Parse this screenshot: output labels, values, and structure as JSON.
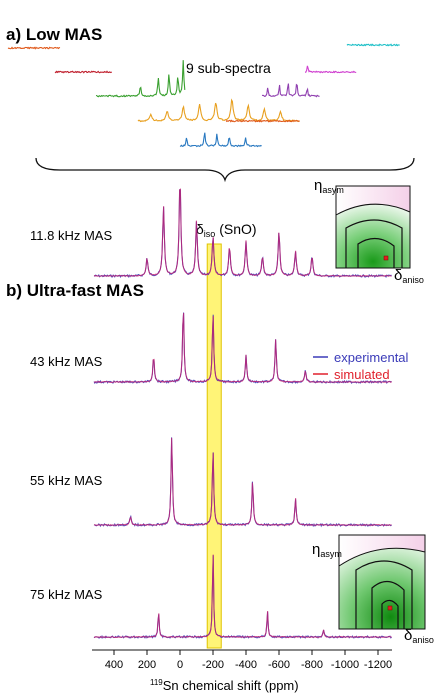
{
  "figure": {
    "panel_a": {
      "letter": "a)",
      "title": "Low MAS"
    },
    "panel_b": {
      "letter": "b)",
      "title": "Ultra-fast MAS"
    },
    "subspectra_label": "9 sub-spectra",
    "iso_label": {
      "greek": "δ",
      "sub": "iso",
      "rest": " (SnO)"
    },
    "inset_labels": {
      "y_greek": "η",
      "y_sub": "asym",
      "x_greek": "δ",
      "x_sub": "aniso"
    },
    "legend": [
      {
        "label": "experimental",
        "color": "#3a3ab8"
      },
      {
        "label": "simulated",
        "color": "#e0202c"
      }
    ],
    "spectra_labels": [
      "11.8 kHz MAS",
      "43 kHz MAS",
      "55 kHz MAS",
      "75 kHz MAS"
    ],
    "x_axis": {
      "label_sup": "119",
      "label_rest": "Sn chemical shift (ppm)",
      "ticks": [
        "400",
        "200",
        "0",
        "-200",
        "-400",
        "-600",
        "-800",
        "-1000",
        "-1200"
      ]
    },
    "colors": {
      "highlight": "#fff04a",
      "subspectra": [
        "#e05a1c",
        "#c0202e",
        "#3aa030",
        "#e8a020",
        "#e05a1c",
        "#2878c0",
        "#9040b0",
        "#d040d0",
        "#20c0c8"
      ],
      "contour": "#2a9a2a"
    }
  },
  "chart_data": {
    "type": "line",
    "title": "",
    "xlabel": "119Sn chemical shift (ppm)",
    "xlim": [
      520,
      -1320
    ],
    "xticks": [
      400,
      200,
      0,
      -200,
      -400,
      -600,
      -800,
      -1000,
      -1200
    ],
    "highlight_region_ppm": [
      -165,
      -250
    ],
    "series": [
      {
        "name": "experimental"
      },
      {
        "name": "simulated"
      }
    ],
    "spectra": [
      {
        "label": "11.8 kHz MAS",
        "peaks": [
          [
            200,
            0.18
          ],
          [
            100,
            0.7
          ],
          [
            0,
            1.0
          ],
          [
            -100,
            0.55
          ],
          [
            -200,
            0.4
          ],
          [
            -300,
            0.3
          ],
          [
            -400,
            0.35
          ],
          [
            -500,
            0.2
          ],
          [
            -600,
            0.45
          ],
          [
            -700,
            0.25
          ],
          [
            -800,
            0.2
          ]
        ]
      },
      {
        "label": "43 kHz MAS",
        "peaks": [
          [
            160,
            0.35
          ],
          [
            -20,
            1.0
          ],
          [
            -200,
            0.9
          ],
          [
            -400,
            0.35
          ],
          [
            -580,
            0.55
          ],
          [
            -760,
            0.15
          ]
        ]
      },
      {
        "label": "55 kHz MAS",
        "peaks": [
          [
            300,
            0.1
          ],
          [
            50,
            1.0
          ],
          [
            -200,
            0.85
          ],
          [
            -440,
            0.5
          ],
          [
            -700,
            0.3
          ]
        ]
      },
      {
        "label": "75 kHz MAS",
        "peaks": [
          [
            130,
            0.3
          ],
          [
            -200,
            1.0
          ],
          [
            -530,
            0.3
          ],
          [
            -870,
            0.08
          ]
        ]
      }
    ]
  }
}
